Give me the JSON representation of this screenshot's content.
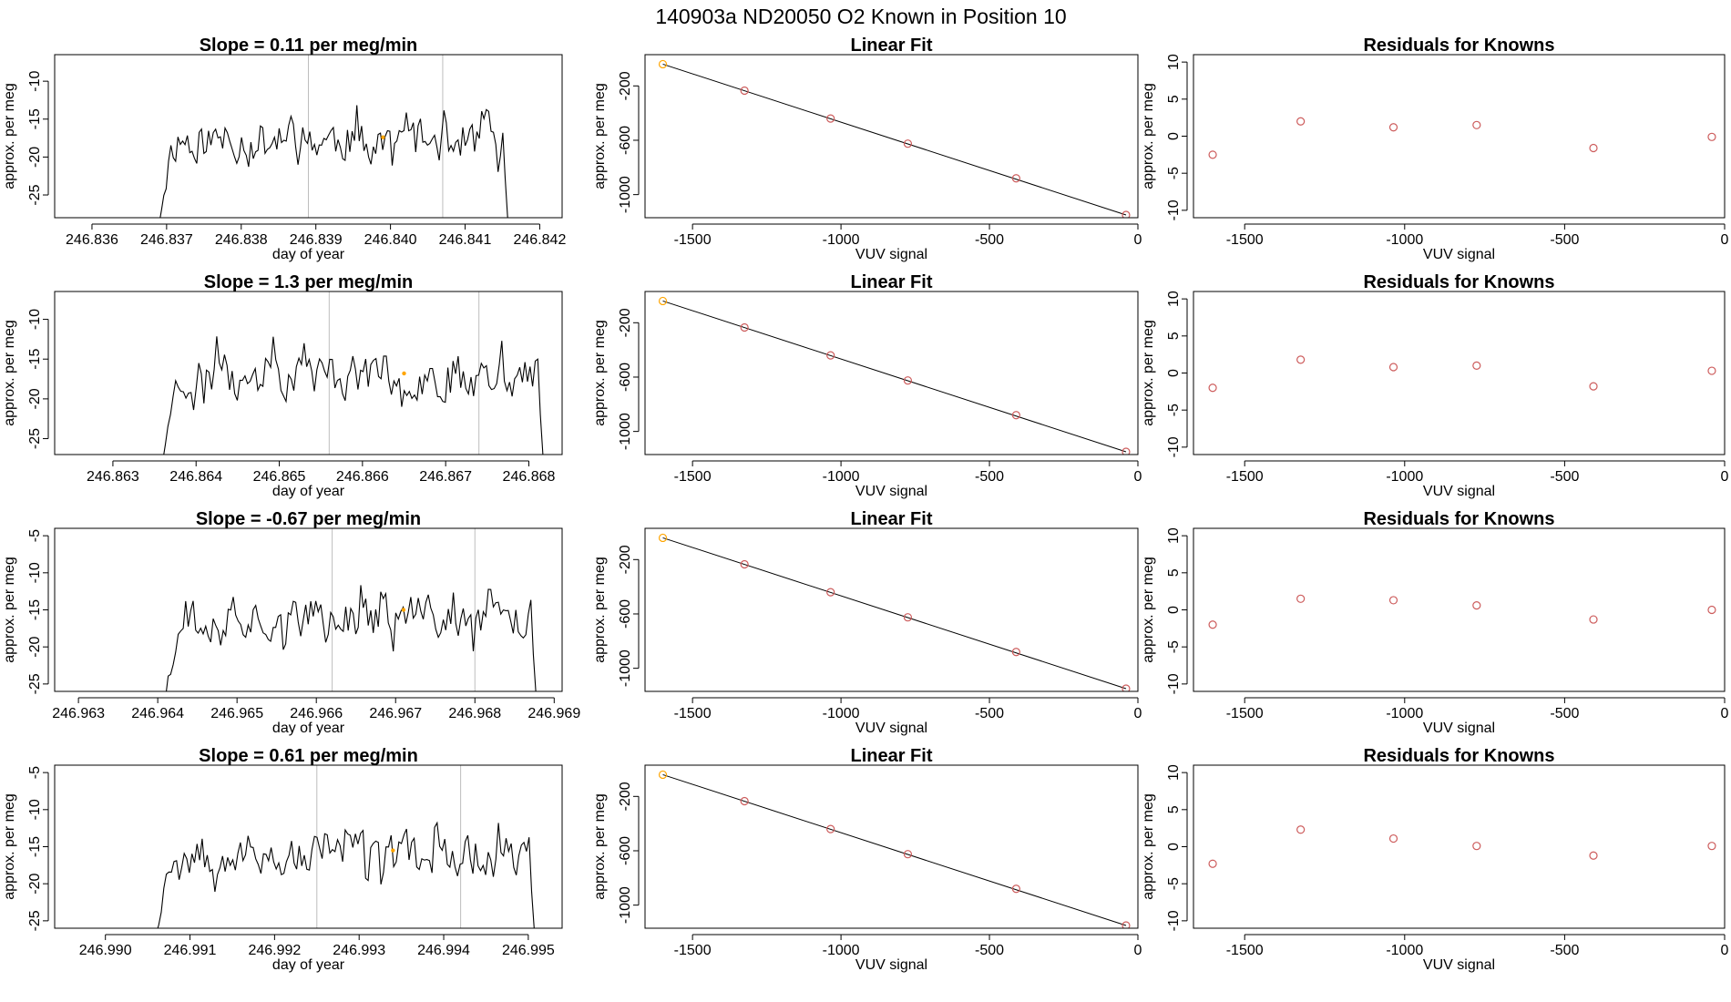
{
  "figure": {
    "title": "140903a     ND20050   O2 Known in Position  10"
  },
  "colors": {
    "series": "#000000",
    "points": "#cd5c5c",
    "marker": "#ffa500",
    "vlines": "#bebebe"
  },
  "chart_data": [
    {
      "type": "line",
      "row": 0,
      "title": "Slope =  0.11  per meg/min",
      "xlabel": "day of year",
      "ylabel": "approx. per meg",
      "xlim": [
        246.8355,
        246.8423
      ],
      "ylim": [
        -28,
        -6.5
      ],
      "xticks": [
        "246.836",
        "246.837",
        "246.838",
        "246.839",
        "246.840",
        "246.841",
        "246.842"
      ],
      "yticks": [
        -25,
        -20,
        -15,
        -10
      ],
      "vlines": [
        246.8389,
        246.8407
      ],
      "marker": {
        "x": 246.8399,
        "y": -17.4
      },
      "trace": {
        "start": 246.8369,
        "end": 246.8416,
        "n": 150,
        "mean": -17.8,
        "amp": 3.8,
        "seed": 11
      },
      "baseline": -28
    },
    {
      "type": "scatter+line",
      "row": 0,
      "title": "Linear Fit",
      "xlabel": "VUV signal",
      "ylabel": "approx. per meg",
      "xlim": [
        -1660,
        0
      ],
      "ylim": [
        -1170,
        30
      ],
      "xticks": [
        -1500,
        -1000,
        -500,
        0
      ],
      "yticks": [
        -1000,
        -600,
        -200
      ],
      "points": [
        {
          "x": -1600,
          "y": -40
        },
        {
          "x": -1325,
          "y": -235
        },
        {
          "x": -1035,
          "y": -440
        },
        {
          "x": -775,
          "y": -625
        },
        {
          "x": -410,
          "y": -880
        },
        {
          "x": -40,
          "y": -1150
        }
      ],
      "fit": [
        {
          "x": -1600,
          "y": -40
        },
        {
          "x": -40,
          "y": -1150
        }
      ]
    },
    {
      "type": "scatter",
      "row": 0,
      "title": "Residuals for Knowns",
      "xlabel": "VUV signal",
      "ylabel": "approx. per meg",
      "xlim": [
        -1660,
        0
      ],
      "ylim": [
        -11,
        11
      ],
      "xticks": [
        -1500,
        -1000,
        -500,
        0
      ],
      "yticks": [
        -10,
        -5,
        0,
        5,
        10
      ],
      "points": [
        {
          "x": -1600,
          "y": -2.5
        },
        {
          "x": -1325,
          "y": 2.0
        },
        {
          "x": -1035,
          "y": 1.2
        },
        {
          "x": -775,
          "y": 1.5
        },
        {
          "x": -410,
          "y": -1.6
        },
        {
          "x": -40,
          "y": -0.1
        }
      ]
    },
    {
      "type": "line",
      "row": 1,
      "title": "Slope =  1.3  per meg/min",
      "xlabel": "day of year",
      "ylabel": "approx. per meg",
      "xlim": [
        246.8623,
        246.8684
      ],
      "ylim": [
        -27,
        -6.5
      ],
      "xticks": [
        "246.863",
        "246.864",
        "246.865",
        "246.866",
        "246.867",
        "246.868"
      ],
      "yticks": [
        -25,
        -20,
        -15,
        -10
      ],
      "vlines": [
        246.8656,
        246.8674
      ],
      "marker": {
        "x": 246.8665,
        "y": -16.8
      },
      "trace": {
        "start": 246.8636,
        "end": 246.8682,
        "n": 150,
        "mean": -17.0,
        "amp": 4.0,
        "seed": 23
      },
      "baseline": -27
    },
    {
      "type": "scatter+line",
      "row": 1,
      "title": "Linear Fit",
      "xlabel": "VUV signal",
      "ylabel": "approx. per meg",
      "xlim": [
        -1660,
        0
      ],
      "ylim": [
        -1170,
        30
      ],
      "xticks": [
        -1500,
        -1000,
        -500,
        0
      ],
      "yticks": [
        -1000,
        -600,
        -200
      ],
      "points": [
        {
          "x": -1600,
          "y": -40
        },
        {
          "x": -1325,
          "y": -235
        },
        {
          "x": -1035,
          "y": -440
        },
        {
          "x": -775,
          "y": -625
        },
        {
          "x": -410,
          "y": -880
        },
        {
          "x": -40,
          "y": -1150
        }
      ],
      "fit": [
        {
          "x": -1600,
          "y": -40
        },
        {
          "x": -40,
          "y": -1150
        }
      ]
    },
    {
      "type": "scatter",
      "row": 1,
      "title": "Residuals for Knowns",
      "xlabel": "VUV signal",
      "ylabel": "approx. per meg",
      "xlim": [
        -1660,
        0
      ],
      "ylim": [
        -11,
        11
      ],
      "xticks": [
        -1500,
        -1000,
        -500,
        0
      ],
      "yticks": [
        -10,
        -5,
        0,
        5,
        10
      ],
      "points": [
        {
          "x": -1600,
          "y": -2.0
        },
        {
          "x": -1325,
          "y": 1.8
        },
        {
          "x": -1035,
          "y": 0.8
        },
        {
          "x": -775,
          "y": 1.0
        },
        {
          "x": -410,
          "y": -1.8
        },
        {
          "x": -40,
          "y": 0.3
        }
      ]
    },
    {
      "type": "line",
      "row": 2,
      "title": "Slope =  -0.67  per meg/min",
      "xlabel": "day of year",
      "ylabel": "approx. per meg",
      "xlim": [
        246.9627,
        246.9691
      ],
      "ylim": [
        -26,
        -4
      ],
      "xticks": [
        "246.963",
        "246.964",
        "246.965",
        "246.966",
        "246.967",
        "246.968",
        "246.969"
      ],
      "yticks": [
        -25,
        -20,
        -15,
        -10,
        -5
      ],
      "vlines": [
        246.9662,
        246.968
      ],
      "marker": {
        "x": 246.9671,
        "y": -15.0
      },
      "trace": {
        "start": 246.9641,
        "end": 246.9688,
        "n": 150,
        "mean": -16.0,
        "amp": 3.9,
        "seed": 37
      },
      "baseline": -26
    },
    {
      "type": "scatter+line",
      "row": 2,
      "title": "Linear Fit",
      "xlabel": "VUV signal",
      "ylabel": "approx. per meg",
      "xlim": [
        -1660,
        0
      ],
      "ylim": [
        -1170,
        30
      ],
      "xticks": [
        -1500,
        -1000,
        -500,
        0
      ],
      "yticks": [
        -1000,
        -600,
        -200
      ],
      "points": [
        {
          "x": -1600,
          "y": -40
        },
        {
          "x": -1325,
          "y": -235
        },
        {
          "x": -1035,
          "y": -440
        },
        {
          "x": -775,
          "y": -625
        },
        {
          "x": -410,
          "y": -880
        },
        {
          "x": -40,
          "y": -1150
        }
      ],
      "fit": [
        {
          "x": -1600,
          "y": -40
        },
        {
          "x": -40,
          "y": -1150
        }
      ]
    },
    {
      "type": "scatter",
      "row": 2,
      "title": "Residuals for Knowns",
      "xlabel": "VUV signal",
      "ylabel": "approx. per meg",
      "xlim": [
        -1660,
        0
      ],
      "ylim": [
        -11,
        11
      ],
      "xticks": [
        -1500,
        -1000,
        -500,
        0
      ],
      "yticks": [
        -10,
        -5,
        0,
        5,
        10
      ],
      "points": [
        {
          "x": -1600,
          "y": -2.0
        },
        {
          "x": -1325,
          "y": 1.5
        },
        {
          "x": -1035,
          "y": 1.3
        },
        {
          "x": -775,
          "y": 0.6
        },
        {
          "x": -410,
          "y": -1.3
        },
        {
          "x": -40,
          "y": 0.0
        }
      ]
    },
    {
      "type": "line",
      "row": 3,
      "title": "Slope =  0.61  per meg/min",
      "xlabel": "day of year",
      "ylabel": "approx. per meg",
      "xlim": [
        246.9894,
        246.9954
      ],
      "ylim": [
        -26,
        -4
      ],
      "xticks": [
        "246.990",
        "246.991",
        "246.992",
        "246.993",
        "246.994",
        "246.995"
      ],
      "yticks": [
        -25,
        -20,
        -15,
        -10,
        -5
      ],
      "vlines": [
        246.9925,
        246.9942
      ],
      "marker": {
        "x": 246.9934,
        "y": -15.5
      },
      "trace": {
        "start": 246.9906,
        "end": 246.9951,
        "n": 150,
        "mean": -16.0,
        "amp": 3.9,
        "seed": 53
      },
      "baseline": -26
    },
    {
      "type": "scatter+line",
      "row": 3,
      "title": "Linear Fit",
      "xlabel": "VUV signal",
      "ylabel": "approx. per meg",
      "xlim": [
        -1660,
        0
      ],
      "ylim": [
        -1170,
        30
      ],
      "xticks": [
        -1500,
        -1000,
        -500,
        0
      ],
      "yticks": [
        -1000,
        -600,
        -200
      ],
      "points": [
        {
          "x": -1600,
          "y": -40
        },
        {
          "x": -1325,
          "y": -235
        },
        {
          "x": -1035,
          "y": -440
        },
        {
          "x": -775,
          "y": -625
        },
        {
          "x": -410,
          "y": -880
        },
        {
          "x": -40,
          "y": -1150
        }
      ],
      "fit": [
        {
          "x": -1600,
          "y": -40
        },
        {
          "x": -40,
          "y": -1150
        }
      ]
    },
    {
      "type": "scatter",
      "row": 3,
      "title": "Residuals for Knowns",
      "xlabel": "VUV signal",
      "ylabel": "approx. per meg",
      "xlim": [
        -1660,
        0
      ],
      "ylim": [
        -11,
        11
      ],
      "xticks": [
        -1500,
        -1000,
        -500,
        0
      ],
      "yticks": [
        -10,
        -5,
        0,
        5,
        10
      ],
      "points": [
        {
          "x": -1600,
          "y": -2.3
        },
        {
          "x": -1325,
          "y": 2.3
        },
        {
          "x": -1035,
          "y": 1.1
        },
        {
          "x": -775,
          "y": 0.1
        },
        {
          "x": -410,
          "y": -1.2
        },
        {
          "x": -40,
          "y": 0.1
        }
      ]
    }
  ]
}
